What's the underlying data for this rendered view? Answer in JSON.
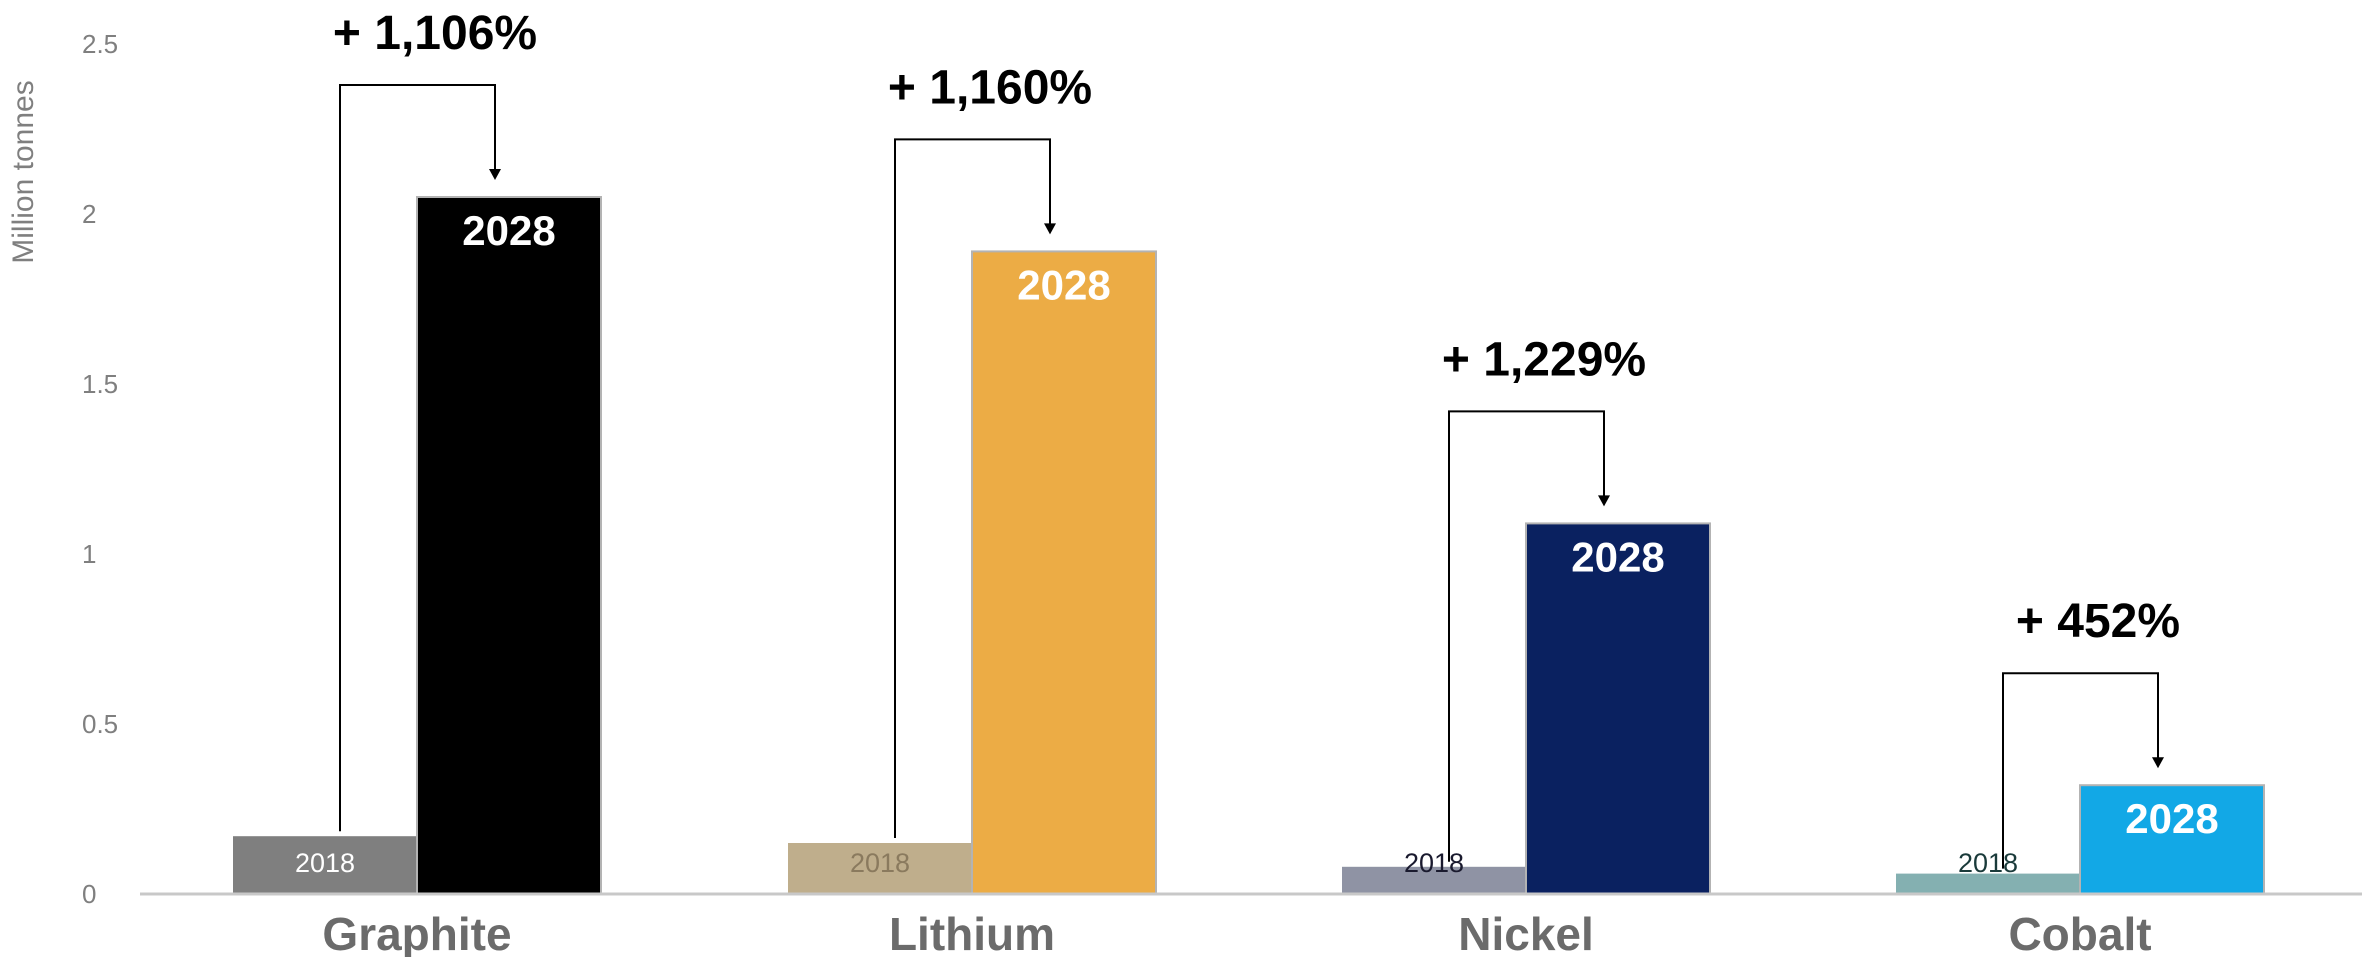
{
  "chart_data": {
    "type": "bar",
    "ylabel": "Million tonnes",
    "ylim": [
      0,
      2.5
    ],
    "yticks": [
      {
        "value": 0,
        "label": "0"
      },
      {
        "value": 0.5,
        "label": "0.5"
      },
      {
        "value": 1,
        "label": "1"
      },
      {
        "value": 1.5,
        "label": "1.5"
      },
      {
        "value": 2,
        "label": "2"
      },
      {
        "value": 2.5,
        "label": "2.5"
      }
    ],
    "categories": [
      "Graphite",
      "Lithium",
      "Nickel",
      "Cobalt"
    ],
    "series": [
      {
        "name": "2018",
        "values": [
          0.17,
          0.15,
          0.08,
          0.06
        ]
      },
      {
        "name": "2028",
        "values": [
          2.05,
          1.89,
          1.09,
          0.32
        ]
      }
    ],
    "growth_labels": [
      "+ 1,106%",
      "+ 1,160%",
      "+ 1,229%",
      "+ 452%"
    ],
    "colors": {
      "2018": [
        "#7f7f7f",
        "#bfae8c",
        "#8f93a4",
        "#84b0b1"
      ],
      "2028": [
        "#000000",
        "#ecac45",
        "#0a2160",
        "#12a8e6"
      ],
      "label2018": [
        "#ffffff",
        "#8a7a5e",
        "#1a1a2e",
        "#1a3a3a"
      ],
      "label2028": [
        "#ffffff",
        "#ffffff",
        "#ffffff",
        "#ffffff"
      ]
    },
    "grid": false,
    "legend": "none"
  }
}
